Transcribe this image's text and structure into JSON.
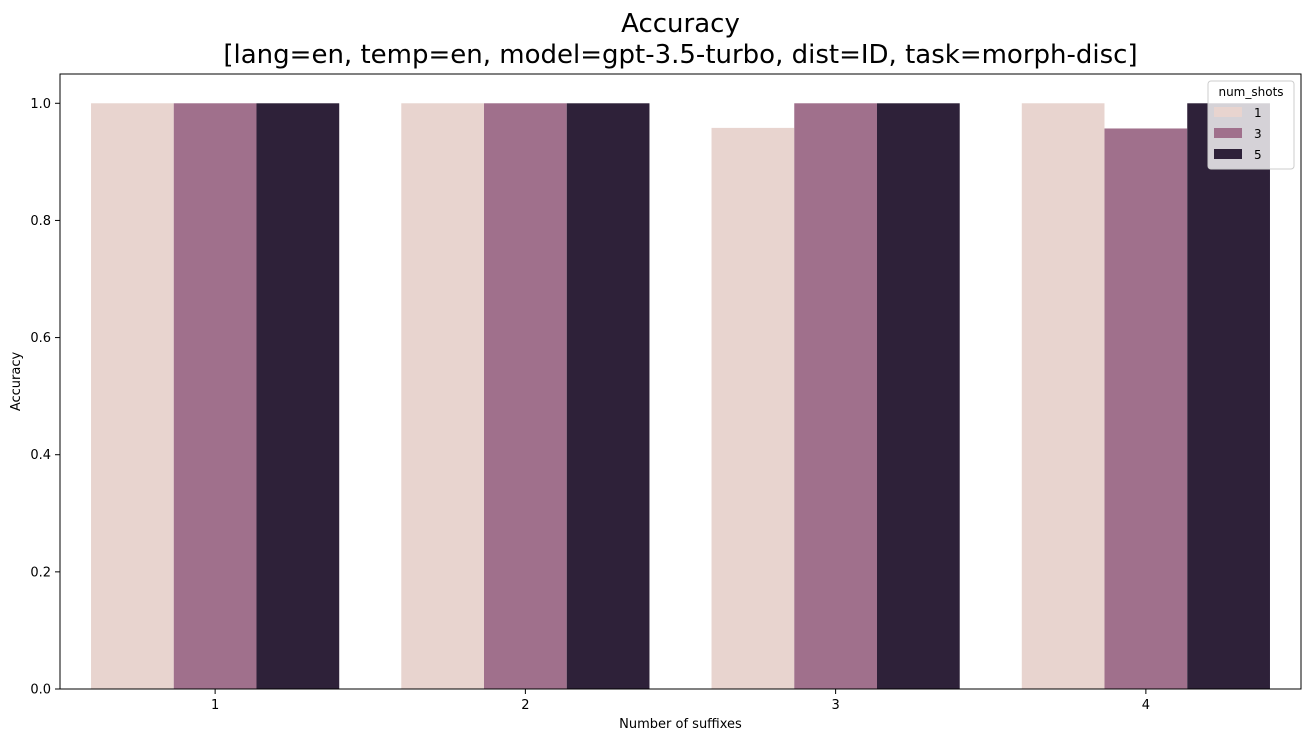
{
  "chart_data": {
    "type": "bar",
    "title": "Accuracy",
    "subtitle": "[lang=en, temp=en, model=gpt-3.5-turbo, dist=ID, task=morph-disc]",
    "xlabel": "Number of suffixes",
    "ylabel": "Accuracy",
    "categories": [
      "1",
      "2",
      "3",
      "4"
    ],
    "ylim": [
      0,
      1.05
    ],
    "yticks": [
      "0.0",
      "0.2",
      "0.4",
      "0.6",
      "0.8",
      "1.0"
    ],
    "grid": false,
    "legend": {
      "title": "num_shots",
      "position": "top-right"
    },
    "series": [
      {
        "name": "1",
        "color": "#e8d4cf",
        "values": [
          1.0,
          1.0,
          0.958,
          1.0
        ]
      },
      {
        "name": "3",
        "color": "#a0708c",
        "values": [
          1.0,
          1.0,
          1.0,
          0.957
        ]
      },
      {
        "name": "5",
        "color": "#2e2139",
        "values": [
          1.0,
          1.0,
          1.0,
          1.0
        ]
      }
    ]
  }
}
